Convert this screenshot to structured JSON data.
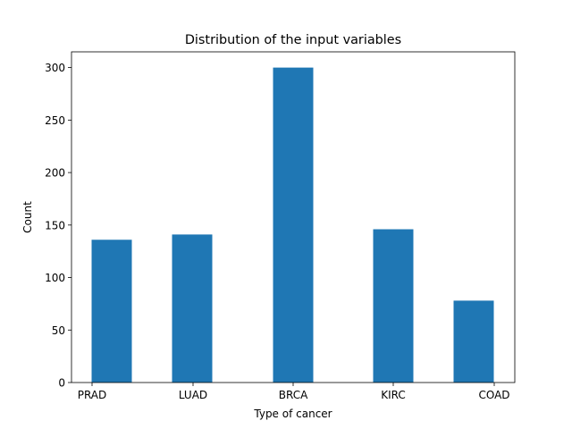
{
  "chart_data": {
    "type": "bar",
    "title": "Distribution of the input variables",
    "xlabel": "Type of cancer",
    "ylabel": "Count",
    "categories": [
      "PRAD",
      "LUAD",
      "BRCA",
      "KIRC",
      "COAD"
    ],
    "values": [
      136,
      141,
      300,
      146,
      78
    ],
    "ylim": [
      0,
      315
    ],
    "yticks": [
      0,
      50,
      100,
      150,
      200,
      250,
      300
    ],
    "grid": false,
    "legend": "none",
    "bar_color": "#1f77b4"
  }
}
